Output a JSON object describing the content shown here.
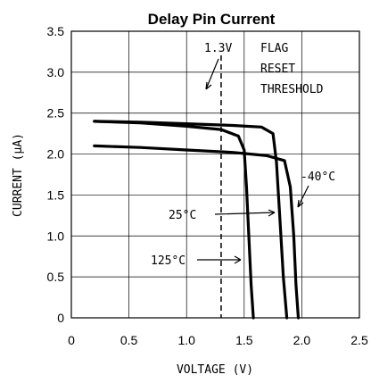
{
  "chart_data": {
    "type": "line",
    "title": "Delay Pin Current",
    "xlabel": "VOLTAGE (V)",
    "ylabel": "CURRENT (μA)",
    "xlim": [
      0,
      2.5
    ],
    "ylim": [
      0,
      3.5
    ],
    "x_ticks": [
      "0",
      "0.5",
      "1.0",
      "1.5",
      "2.0",
      "2.5"
    ],
    "y_ticks": [
      "0",
      "0.5",
      "1.0",
      "1.5",
      "2.0",
      "2.5",
      "3.0",
      "3.5"
    ],
    "grid": true,
    "series": [
      {
        "name": "-40°C",
        "x": [
          0.2,
          0.6,
          1.0,
          1.4,
          1.7,
          1.85,
          1.9,
          1.93,
          1.95,
          1.97
        ],
        "y": [
          2.1,
          2.08,
          2.05,
          2.02,
          1.98,
          1.92,
          1.6,
          1.0,
          0.4,
          0
        ]
      },
      {
        "name": "25°C",
        "x": [
          0.2,
          0.6,
          1.0,
          1.4,
          1.65,
          1.75,
          1.78,
          1.81,
          1.84,
          1.87
        ],
        "y": [
          2.4,
          2.39,
          2.37,
          2.35,
          2.33,
          2.25,
          1.9,
          1.2,
          0.5,
          0
        ]
      },
      {
        "name": "125°C",
        "x": [
          0.2,
          0.6,
          1.0,
          1.3,
          1.45,
          1.5,
          1.52,
          1.54,
          1.56,
          1.58
        ],
        "y": [
          2.4,
          2.38,
          2.34,
          2.3,
          2.22,
          2.05,
          1.6,
          1.0,
          0.4,
          0
        ]
      }
    ],
    "reference_line": {
      "x": 1.3,
      "label": "1.3V"
    },
    "annotations": [
      {
        "text": "FLAG"
      },
      {
        "text": "RESET"
      },
      {
        "text": "THRESHOLD"
      },
      {
        "text": "-40°C"
      },
      {
        "text": "25°C"
      },
      {
        "text": "125°C"
      }
    ]
  }
}
